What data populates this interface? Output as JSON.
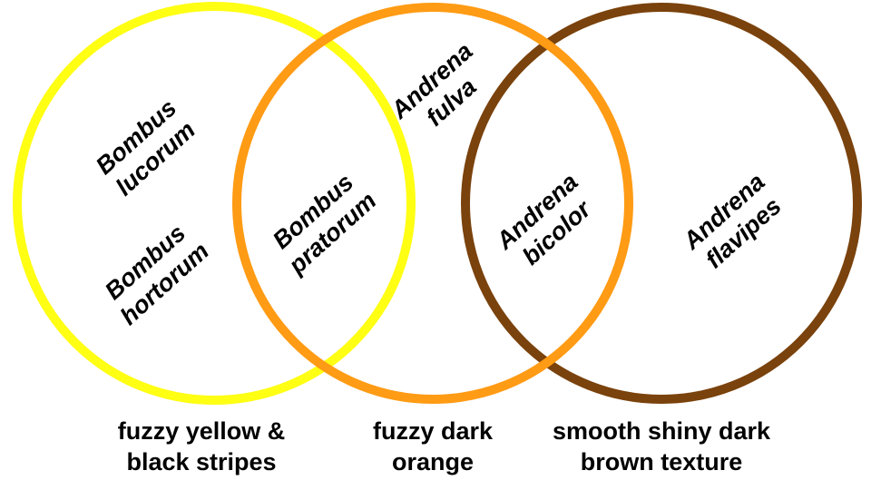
{
  "circles": [
    {
      "key": "yellow",
      "color": "#ffff14",
      "caption_lines": [
        "fuzzy yellow &",
        "black stripes"
      ]
    },
    {
      "key": "orange",
      "color": "#ff9b14",
      "caption_lines": [
        "fuzzy dark",
        "orange"
      ]
    },
    {
      "key": "brown",
      "color": "#7a420c",
      "caption_lines": [
        "smooth shiny dark",
        "brown texture"
      ]
    }
  ],
  "species": {
    "bombus_lucorum": {
      "genus": "Bombus",
      "epithet": "lucorum"
    },
    "bombus_hortorum": {
      "genus": "Bombus",
      "epithet": "hortorum"
    },
    "bombus_pratorum": {
      "genus": "Bombus",
      "epithet": "pratorum"
    },
    "andrena_fulva": {
      "genus": "Andrena",
      "epithet": "fulva"
    },
    "andrena_bicolor": {
      "genus": "Andrena",
      "epithet": "bicolor"
    },
    "andrena_flavipes": {
      "genus": "Andrena",
      "epithet": "flavipes"
    }
  }
}
